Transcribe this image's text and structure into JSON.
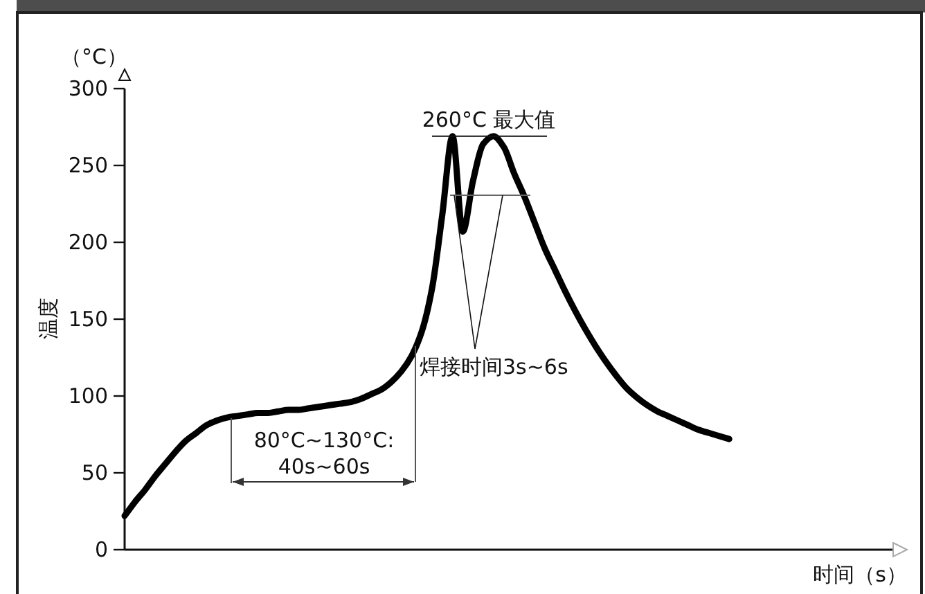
{
  "chart_data": {
    "type": "line",
    "ylabel": "温度",
    "xlabel": "时间（s）",
    "categories": [
      null,
      null,
      null,
      null,
      null,
      null,
      null,
      null,
      null,
      null,
      null,
      null,
      null,
      null,
      null,
      null,
      null,
      null,
      null,
      null,
      null,
      null,
      null,
      null,
      null,
      null,
      null,
      null,
      null,
      null,
      null,
      null,
      null,
      null,
      null,
      null,
      null,
      null,
      null,
      null,
      null,
      null,
      null,
      null,
      null,
      null,
      null,
      null,
      null,
      null,
      null,
      null,
      null,
      null,
      null,
      null,
      null,
      null,
      null,
      null,
      null,
      null,
      null,
      null,
      null,
      null,
      null,
      null,
      null,
      null,
      null,
      null,
      null,
      null,
      null
    ],
    "series": [
      {
        "color": "#000000",
        "values": [
          22,
          31,
          39,
          48,
          56,
          64,
          71,
          76,
          81,
          84,
          86,
          87,
          88,
          89,
          89,
          90,
          91,
          91,
          92,
          93,
          94,
          95,
          96,
          98,
          101,
          104,
          109,
          116,
          126,
          142,
          170,
          218,
          269,
          207,
          240,
          264,
          269,
          262,
          245,
          230,
          213,
          196,
          182,
          168,
          155,
          143,
          132,
          122,
          113,
          105,
          99,
          94,
          90,
          87,
          84,
          81,
          78,
          76,
          74,
          72,
          null,
          null,
          null,
          null,
          null,
          null,
          null,
          null,
          null,
          null,
          null,
          null,
          null,
          null,
          null
        ]
      }
    ],
    "ylim": [
      0,
      300
    ],
    "yticks": [
      0,
      50,
      100,
      150,
      200,
      250,
      300
    ],
    "grid": false,
    "marker": "none",
    "line_style": "solid",
    "annotations": [
      "（°C）",
      {
        "text": "260°C 最大值",
        "y": 269
      },
      "焊接时间3s~6s",
      "80°C~130°C:\n40s~60s"
    ]
  }
}
